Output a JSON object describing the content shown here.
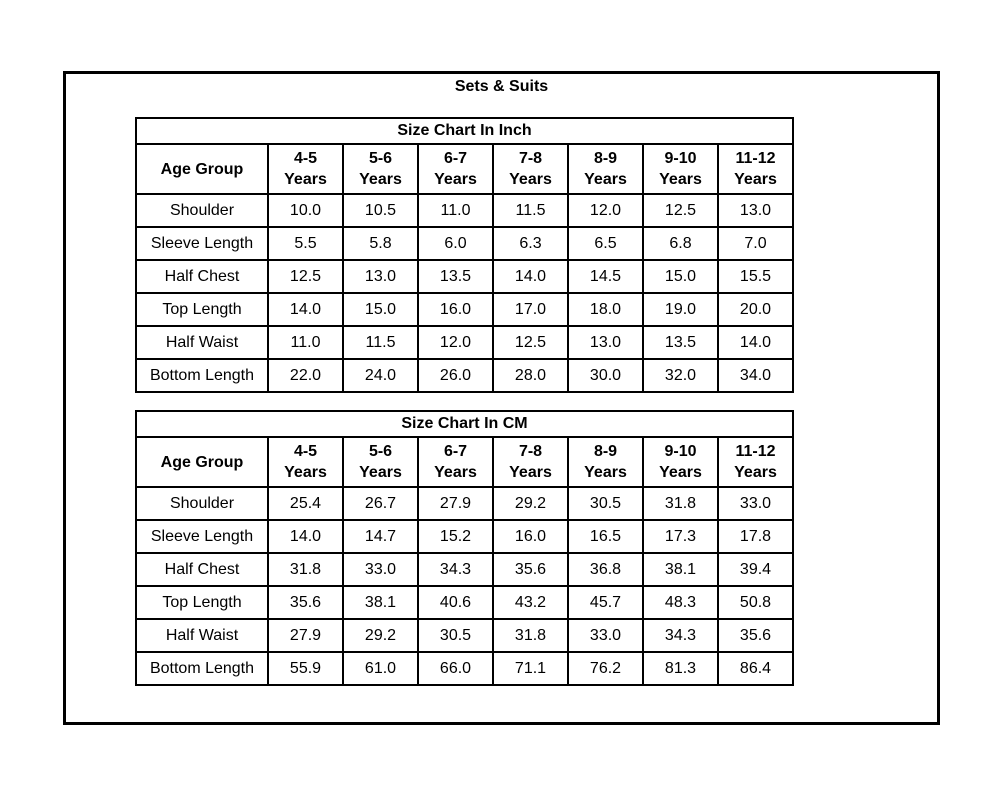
{
  "page": {
    "title": "Sets & Suits"
  },
  "tables": [
    {
      "title": "Size Chart In Inch",
      "age_group_label": "Age Group",
      "column_headers": [
        {
          "top": "4-5",
          "bottom": "Years"
        },
        {
          "top": "5-6",
          "bottom": "Years"
        },
        {
          "top": "6-7",
          "bottom": "Years"
        },
        {
          "top": "7-8",
          "bottom": "Years"
        },
        {
          "top": "8-9",
          "bottom": "Years"
        },
        {
          "top": "9-10",
          "bottom": "Years"
        },
        {
          "top": "11-12",
          "bottom": "Years"
        }
      ],
      "rows": [
        {
          "label": "Shoulder",
          "values": [
            "10.0",
            "10.5",
            "11.0",
            "11.5",
            "12.0",
            "12.5",
            "13.0"
          ]
        },
        {
          "label": "Sleeve Length",
          "values": [
            "5.5",
            "5.8",
            "6.0",
            "6.3",
            "6.5",
            "6.8",
            "7.0"
          ]
        },
        {
          "label": "Half Chest",
          "values": [
            "12.5",
            "13.0",
            "13.5",
            "14.0",
            "14.5",
            "15.0",
            "15.5"
          ]
        },
        {
          "label": "Top Length",
          "values": [
            "14.0",
            "15.0",
            "16.0",
            "17.0",
            "18.0",
            "19.0",
            "20.0"
          ]
        },
        {
          "label": "Half Waist",
          "values": [
            "11.0",
            "11.5",
            "12.0",
            "12.5",
            "13.0",
            "13.5",
            "14.0"
          ]
        },
        {
          "label": "Bottom Length",
          "values": [
            "22.0",
            "24.0",
            "26.0",
            "28.0",
            "30.0",
            "32.0",
            "34.0"
          ]
        }
      ]
    },
    {
      "title": "Size Chart In CM",
      "age_group_label": "Age Group",
      "column_headers": [
        {
          "top": "4-5",
          "bottom": "Years"
        },
        {
          "top": "5-6",
          "bottom": "Years"
        },
        {
          "top": "6-7",
          "bottom": "Years"
        },
        {
          "top": "7-8",
          "bottom": "Years"
        },
        {
          "top": "8-9",
          "bottom": "Years"
        },
        {
          "top": "9-10",
          "bottom": "Years"
        },
        {
          "top": "11-12",
          "bottom": "Years"
        }
      ],
      "rows": [
        {
          "label": "Shoulder",
          "values": [
            "25.4",
            "26.7",
            "27.9",
            "29.2",
            "30.5",
            "31.8",
            "33.0"
          ]
        },
        {
          "label": "Sleeve Length",
          "values": [
            "14.0",
            "14.7",
            "15.2",
            "16.0",
            "16.5",
            "17.3",
            "17.8"
          ]
        },
        {
          "label": "Half Chest",
          "values": [
            "31.8",
            "33.0",
            "34.3",
            "35.6",
            "36.8",
            "38.1",
            "39.4"
          ]
        },
        {
          "label": "Top Length",
          "values": [
            "35.6",
            "38.1",
            "40.6",
            "43.2",
            "45.7",
            "48.3",
            "50.8"
          ]
        },
        {
          "label": "Half Waist",
          "values": [
            "27.9",
            "29.2",
            "30.5",
            "31.8",
            "33.0",
            "34.3",
            "35.6"
          ]
        },
        {
          "label": "Bottom Length",
          "values": [
            "55.9",
            "61.0",
            "66.0",
            "71.1",
            "76.2",
            "81.3",
            "86.4"
          ]
        }
      ]
    }
  ]
}
